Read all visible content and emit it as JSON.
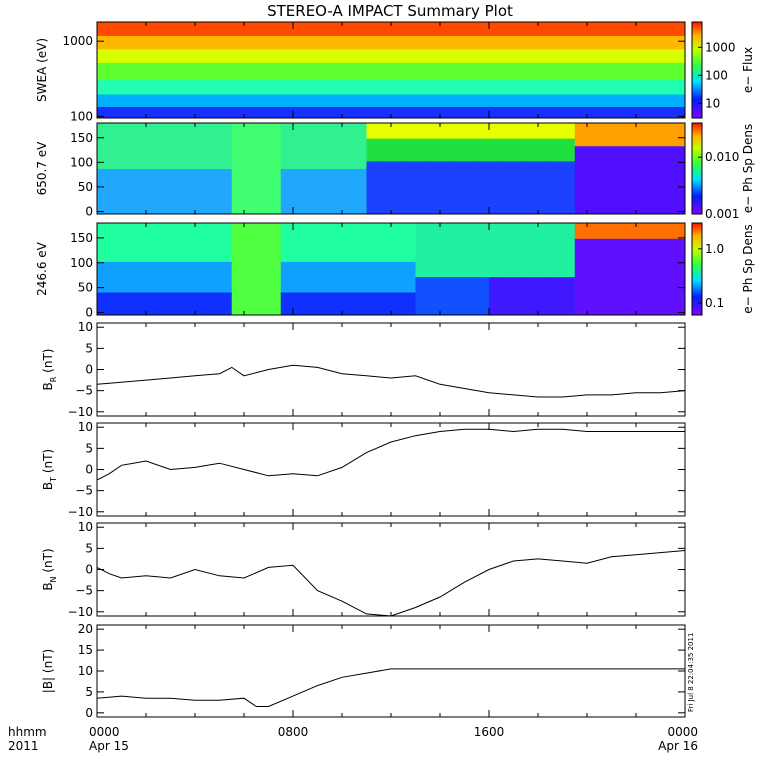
{
  "title": "STEREO-A IMPACT Summary Plot",
  "timestamp": "Fri Jul  8 22:04:35 2011",
  "x_axis": {
    "row1": {
      "label": "hhmm",
      "ticks": [
        "0000",
        "0800",
        "1600",
        "0000"
      ]
    },
    "row2": {
      "label": "2011",
      "ticks": [
        "Apr 15",
        "",
        "",
        "Apr 16"
      ]
    }
  },
  "chart_data": [
    {
      "type": "heatmap",
      "ylabel": "SWEA (eV)",
      "ylog": true,
      "ylim": [
        95,
        1800
      ],
      "yticks": [
        {
          "v": 100,
          "t": "100"
        },
        {
          "v": 1000,
          "t": "1000"
        }
      ],
      "colorbar": {
        "label": "e− Flux",
        "log": true,
        "lim": [
          3,
          8000
        ],
        "ticks": [
          {
            "v": 10,
            "t": "10"
          },
          {
            "v": 100,
            "t": "100"
          },
          {
            "v": 1000,
            "t": "1000"
          }
        ]
      }
    },
    {
      "type": "heatmap",
      "ylabel": "650.7 eV",
      "ylim": [
        -5,
        180
      ],
      "yticks": [
        {
          "v": 0,
          "t": "0"
        },
        {
          "v": 50,
          "t": "50"
        },
        {
          "v": 100,
          "t": "100"
        },
        {
          "v": 150,
          "t": "150"
        }
      ],
      "colorbar": {
        "label": "e− Ph Sp Dens",
        "log": true,
        "lim": [
          0.001,
          0.04
        ],
        "ticks": [
          {
            "v": 0.001,
            "t": "0.001"
          },
          {
            "v": 0.01,
            "t": "0.010"
          }
        ]
      }
    },
    {
      "type": "heatmap",
      "ylabel": "246.6 eV",
      "ylim": [
        -5,
        180
      ],
      "yticks": [
        {
          "v": 0,
          "t": "0"
        },
        {
          "v": 50,
          "t": "50"
        },
        {
          "v": 100,
          "t": "100"
        },
        {
          "v": 150,
          "t": "150"
        }
      ],
      "colorbar": {
        "label": "e− Ph Sp Dens",
        "log": true,
        "lim": [
          0.06,
          3
        ],
        "ticks": [
          {
            "v": 0.1,
            "t": "0.1"
          },
          {
            "v": 1.0,
            "t": "1.0"
          }
        ]
      }
    },
    {
      "type": "line",
      "ylabel": "B",
      "ylabel_sub": "R",
      "ylabel_unit": "(nT)",
      "ylim": [
        -11,
        11
      ],
      "yticks": [
        {
          "v": -10,
          "t": "−10"
        },
        {
          "v": -5,
          "t": "−5"
        },
        {
          "v": 0,
          "t": "0"
        },
        {
          "v": 5,
          "t": "5"
        },
        {
          "v": 10,
          "t": "10"
        }
      ],
      "x": [
        0,
        1,
        2,
        3,
        4,
        5,
        5.5,
        6,
        7,
        8,
        9,
        10,
        11,
        12,
        13,
        14,
        15,
        16,
        17,
        18,
        19,
        20,
        21,
        22,
        23,
        24
      ],
      "y": [
        -3.5,
        -3.0,
        -2.5,
        -2.0,
        -1.5,
        -1.0,
        0.5,
        -1.5,
        0.0,
        1.0,
        0.5,
        -1.0,
        -1.5,
        -2.0,
        -1.5,
        -3.5,
        -4.5,
        -5.5,
        -6.0,
        -6.5,
        -6.5,
        -6.0,
        -6.0,
        -5.5,
        -5.5,
        -5.0
      ]
    },
    {
      "type": "line",
      "ylabel": "B",
      "ylabel_sub": "T",
      "ylabel_unit": "(nT)",
      "ylim": [
        -11,
        11
      ],
      "yticks": [
        {
          "v": -10,
          "t": "−10"
        },
        {
          "v": -5,
          "t": "−5"
        },
        {
          "v": 0,
          "t": "0"
        },
        {
          "v": 5,
          "t": "5"
        },
        {
          "v": 10,
          "t": "10"
        }
      ],
      "x": [
        0,
        0.5,
        1,
        2,
        3,
        4,
        5,
        6,
        7,
        8,
        9,
        10,
        11,
        12,
        13,
        14,
        15,
        16,
        17,
        18,
        19,
        20,
        21,
        22,
        23,
        24
      ],
      "y": [
        -2.5,
        -1.0,
        1.0,
        2.0,
        0.0,
        0.5,
        1.5,
        0.0,
        -1.5,
        -1.0,
        -1.5,
        0.5,
        4.0,
        6.5,
        8.0,
        9.0,
        9.5,
        9.5,
        9.0,
        9.5,
        9.5,
        9.0,
        9.0,
        9.0,
        9.0,
        9.0
      ]
    },
    {
      "type": "line",
      "ylabel": "B",
      "ylabel_sub": "N",
      "ylabel_unit": "(nT)",
      "ylim": [
        -11,
        11
      ],
      "yticks": [
        {
          "v": -10,
          "t": "−10"
        },
        {
          "v": -5,
          "t": "−5"
        },
        {
          "v": 0,
          "t": "0"
        },
        {
          "v": 5,
          "t": "5"
        },
        {
          "v": 10,
          "t": "10"
        }
      ],
      "x": [
        0,
        0.5,
        1,
        2,
        3,
        4,
        5,
        6,
        7,
        8,
        9,
        10,
        11,
        12,
        13,
        14,
        15,
        16,
        17,
        18,
        19,
        20,
        21,
        22,
        23,
        24
      ],
      "y": [
        0.5,
        -1.0,
        -2.0,
        -1.5,
        -2.0,
        0.0,
        -1.5,
        -2.0,
        0.5,
        1.0,
        -5.0,
        -7.5,
        -10.5,
        -11.0,
        -9.0,
        -6.5,
        -3.0,
        0.0,
        2.0,
        2.5,
        2.0,
        1.5,
        3.0,
        3.5,
        4.0,
        4.5
      ]
    },
    {
      "type": "line",
      "ylabel": "|B|",
      "ylabel_sub": "",
      "ylabel_unit": "(nT)",
      "ylim": [
        -1,
        21
      ],
      "yticks": [
        {
          "v": 0,
          "t": "0"
        },
        {
          "v": 5,
          "t": "5"
        },
        {
          "v": 10,
          "t": "10"
        },
        {
          "v": 15,
          "t": "15"
        },
        {
          "v": 20,
          "t": "20"
        }
      ],
      "x": [
        0,
        1,
        2,
        3,
        4,
        5,
        6,
        6.5,
        7,
        8,
        9,
        10,
        11,
        12,
        13,
        14,
        15,
        16,
        17,
        18,
        19,
        20,
        21,
        22,
        23,
        24
      ],
      "y": [
        3.5,
        4.0,
        3.5,
        3.5,
        3.0,
        3.0,
        3.5,
        1.5,
        1.5,
        4.0,
        6.5,
        8.5,
        9.5,
        10.5,
        10.5,
        10.5,
        10.5,
        10.5,
        10.5,
        10.5,
        10.5,
        10.5,
        10.5,
        10.5,
        10.5,
        10.5
      ]
    }
  ]
}
